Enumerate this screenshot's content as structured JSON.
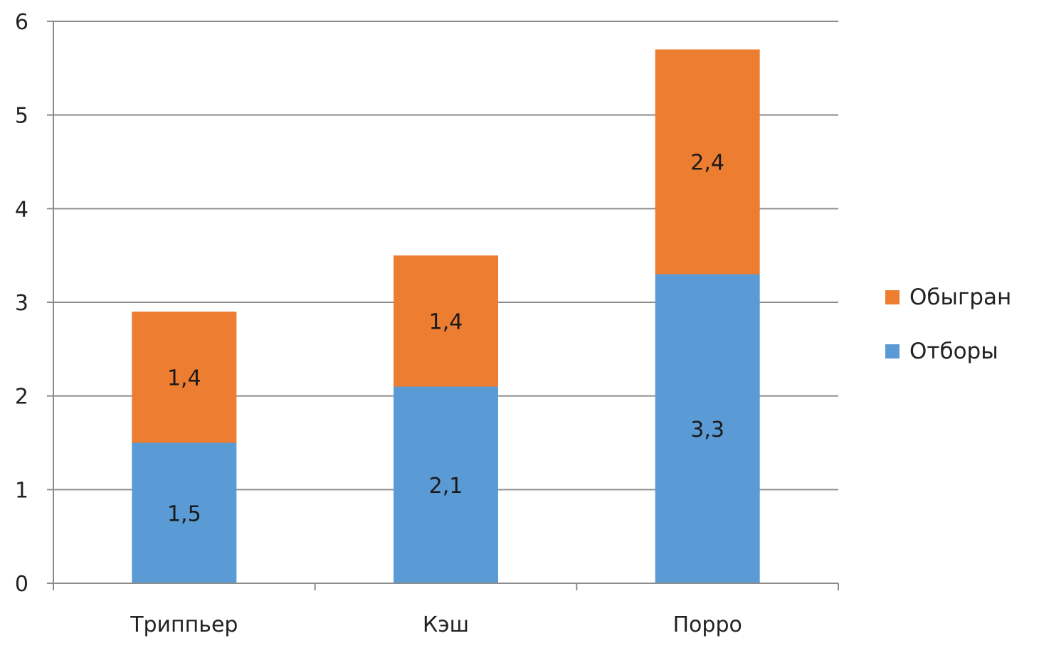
{
  "chart_data": {
    "type": "bar",
    "stacked": true,
    "categories": [
      "Триппьер",
      "Кэш",
      "Порро"
    ],
    "series": [
      {
        "name": "Отборы",
        "values": [
          1.5,
          2.1,
          3.3
        ],
        "color": "#5B9BD5"
      },
      {
        "name": "Обыгран",
        "values": [
          1.4,
          1.4,
          2.4
        ],
        "color": "#ED7D31"
      }
    ],
    "data_labels": [
      [
        "1,5",
        "2,1",
        "3,3"
      ],
      [
        "1,4",
        "1,4",
        "2,4"
      ]
    ],
    "ylim": [
      0,
      6
    ],
    "yticks": [
      "0",
      "1",
      "2",
      "3",
      "4",
      "5",
      "6"
    ],
    "grid": true,
    "legend_position": "right",
    "legend_order": [
      "Обыгран",
      "Отборы"
    ]
  }
}
